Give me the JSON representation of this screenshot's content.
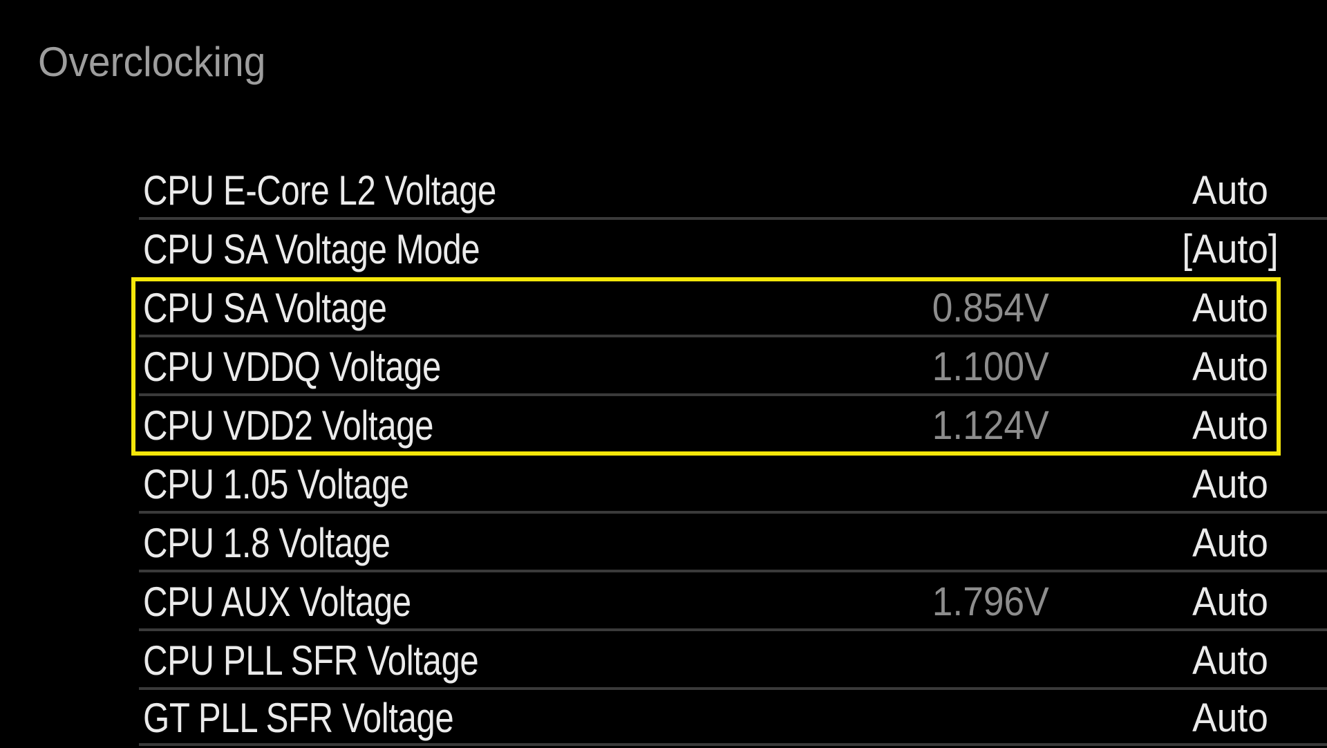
{
  "header": {
    "title": "Overclocking"
  },
  "colors": {
    "background": "#000000",
    "label_text": "#ebebeb",
    "header_text": "#9e9e9e",
    "live_value_text": "#8d8d8d",
    "separator": "#3a3a3a",
    "highlight_border": "#f5e70a"
  },
  "settings": [
    {
      "label": "CPU E-Core L2 Voltage",
      "live_value": "",
      "value": "Auto",
      "highlighted": false
    },
    {
      "label": "CPU SA Voltage Mode",
      "live_value": "",
      "value": "[Auto]",
      "highlighted": false
    },
    {
      "label": "CPU SA Voltage",
      "live_value": "0.854V",
      "value": "Auto",
      "highlighted": true
    },
    {
      "label": "CPU VDDQ Voltage",
      "live_value": "1.100V",
      "value": "Auto",
      "highlighted": true
    },
    {
      "label": "CPU VDD2 Voltage",
      "live_value": "1.124V",
      "value": "Auto",
      "highlighted": true
    },
    {
      "label": "CPU 1.05 Voltage",
      "live_value": "",
      "value": "Auto",
      "highlighted": false
    },
    {
      "label": "CPU 1.8 Voltage",
      "live_value": "",
      "value": "Auto",
      "highlighted": false
    },
    {
      "label": "CPU AUX Voltage",
      "live_value": "1.796V",
      "value": "Auto",
      "highlighted": false
    },
    {
      "label": "CPU PLL SFR Voltage",
      "live_value": "",
      "value": "Auto",
      "highlighted": false
    },
    {
      "label": "GT PLL SFR Voltage",
      "live_value": "",
      "value": "Auto",
      "highlighted": false
    }
  ]
}
